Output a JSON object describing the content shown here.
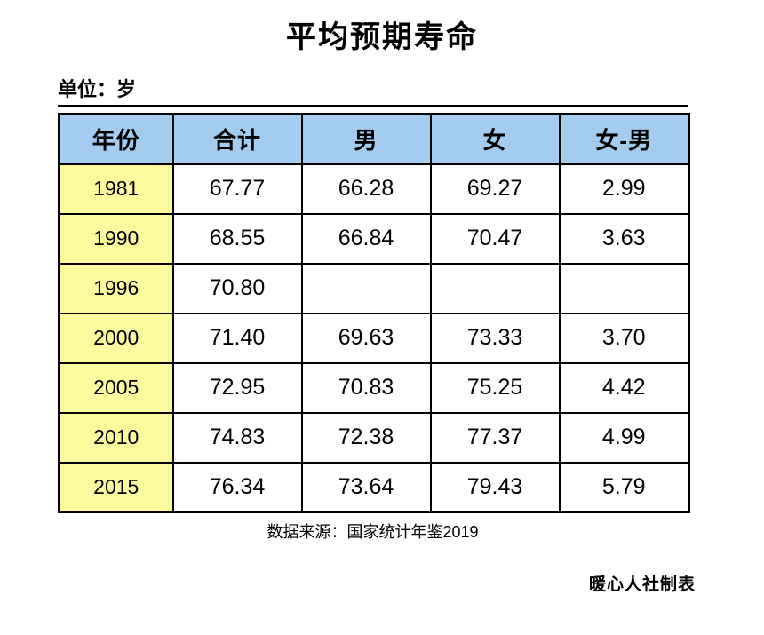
{
  "page": {
    "title": "平均预期寿命",
    "unit_label": "单位：岁",
    "source_note": "数据来源：国家统计年鉴2019",
    "credit": "暖心人社制表"
  },
  "colors": {
    "header_bg": "#a3ccf0",
    "year_column_bg": "#fbfb9e",
    "border": "#000000",
    "background": "#ffffff"
  },
  "chart_data": {
    "type": "table",
    "title": "平均预期寿命",
    "unit": "岁",
    "columns": [
      "年份",
      "合计",
      "男",
      "女",
      "女-男"
    ],
    "rows": [
      [
        "1981",
        "67.77",
        "66.28",
        "69.27",
        "2.99"
      ],
      [
        "1990",
        "68.55",
        "66.84",
        "70.47",
        "3.63"
      ],
      [
        "1996",
        "70.80",
        "",
        "",
        ""
      ],
      [
        "2000",
        "71.40",
        "69.63",
        "73.33",
        "3.70"
      ],
      [
        "2005",
        "72.95",
        "70.83",
        "75.25",
        "4.42"
      ],
      [
        "2010",
        "74.83",
        "72.38",
        "77.37",
        "4.99"
      ],
      [
        "2015",
        "76.34",
        "73.64",
        "79.43",
        "5.79"
      ]
    ],
    "source": "国家统计年鉴2019"
  }
}
